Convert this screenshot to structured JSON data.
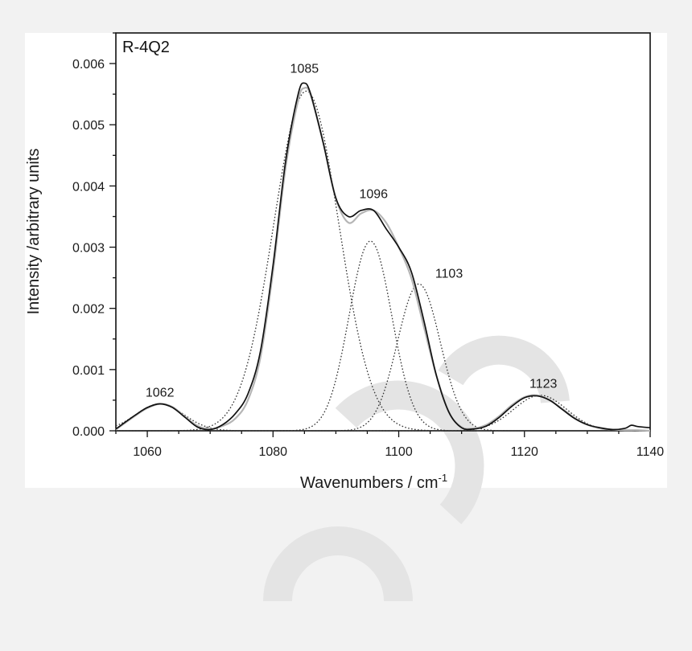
{
  "chart_data": {
    "type": "line",
    "panel_label": "R-4Q2",
    "xlabel": "Wavenumbers / cm",
    "xlabel_sup": "-1",
    "ylabel": "Intensity /arbitrary units",
    "xlim": [
      1055,
      1140
    ],
    "ylim": [
      0,
      0.0065
    ],
    "x_ticks": [
      1060,
      1080,
      1100,
      1120,
      1140
    ],
    "y_ticks": [
      0.0,
      0.001,
      0.002,
      0.003,
      0.004,
      0.005,
      0.006
    ],
    "y_tick_labels": [
      "0.000",
      "0.001",
      "0.002",
      "0.003",
      "0.004",
      "0.005",
      "0.006"
    ],
    "grid": false,
    "components": [
      {
        "center": 1062,
        "amplitude": 0.00044,
        "width": 3.8
      },
      {
        "center": 1085.3,
        "amplitude": 0.00555,
        "width": 5.2
      },
      {
        "center": 1095.5,
        "amplitude": 0.0031,
        "width": 3.4
      },
      {
        "center": 1103.2,
        "amplitude": 0.0024,
        "width": 3.4
      },
      {
        "center": 1122.5,
        "amplitude": 0.00058,
        "width": 4.2
      }
    ],
    "series": [
      {
        "style": "solid-black",
        "x": [
          1055,
          1058,
          1060,
          1062,
          1064,
          1066,
          1068,
          1070,
          1072,
          1074,
          1076,
          1078,
          1080,
          1082,
          1084,
          1085,
          1086,
          1088,
          1090,
          1092,
          1094,
          1096,
          1098,
          1100,
          1102,
          1104,
          1106,
          1108,
          1110,
          1112,
          1114,
          1116,
          1118,
          1120,
          1122,
          1124,
          1126,
          1128,
          1130,
          1132,
          1134,
          1136,
          1137,
          1138,
          1140
        ],
        "y": [
          3e-05,
          0.00025,
          0.00038,
          0.00044,
          0.00038,
          0.00022,
          6e-05,
          2e-05,
          0.0001,
          0.00028,
          0.0006,
          0.0013,
          0.0027,
          0.0044,
          0.0055,
          0.00568,
          0.0055,
          0.0047,
          0.0038,
          0.0035,
          0.0036,
          0.0036,
          0.0033,
          0.003,
          0.0026,
          0.0018,
          0.0009,
          0.0003,
          5e-05,
          3e-05,
          8e-05,
          0.00022,
          0.0004,
          0.00054,
          0.00057,
          0.0005,
          0.00035,
          0.0002,
          0.0001,
          5e-05,
          2e-05,
          4e-05,
          9e-05,
          7e-05,
          5e-05
        ]
      },
      {
        "style": "solid-gray",
        "x": [
          1055,
          1058,
          1060,
          1062,
          1064,
          1066,
          1068,
          1070,
          1072,
          1074,
          1076,
          1078,
          1080,
          1082,
          1084,
          1085,
          1086,
          1088,
          1090,
          1092,
          1094,
          1096,
          1098,
          1100,
          1102,
          1104,
          1106,
          1108,
          1110,
          1112,
          1114,
          1116,
          1118,
          1120,
          1122,
          1124,
          1126,
          1128,
          1130,
          1132,
          1134,
          1136,
          1138,
          1140
        ],
        "y": [
          2e-05,
          0.00024,
          0.00037,
          0.00044,
          0.00039,
          0.00023,
          8e-05,
          3e-05,
          8e-05,
          0.0002,
          0.0005,
          0.0012,
          0.0026,
          0.0043,
          0.0054,
          0.0056,
          0.00548,
          0.0047,
          0.0038,
          0.0034,
          0.00355,
          0.0036,
          0.0034,
          0.003,
          0.0025,
          0.0017,
          0.0009,
          0.0003,
          6e-05,
          4e-05,
          0.0001,
          0.00024,
          0.00042,
          0.00055,
          0.00058,
          0.0005,
          0.00036,
          0.00021,
          0.0001,
          4e-05,
          2e-05,
          1e-05,
          1e-05,
          0.0
        ]
      }
    ],
    "annotations": [
      {
        "text": "1062",
        "x": 1062,
        "y": 0.00056
      },
      {
        "text": "1085",
        "x": 1085,
        "y": 0.00585
      },
      {
        "text": "1096",
        "x": 1096,
        "y": 0.0038
      },
      {
        "text": "1103",
        "x": 1108,
        "y": 0.0025
      },
      {
        "text": "1123",
        "x": 1123,
        "y": 0.0007
      }
    ]
  }
}
